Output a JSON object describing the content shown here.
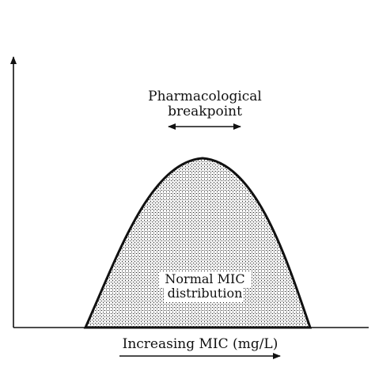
{
  "diagram": {
    "top_label_line1": "Pharmacological",
    "top_label_line2": "breakpoint",
    "curve_label_line1": "Normal MIC",
    "curve_label_line2": "distribution",
    "x_label": "Increasing MIC (mg/L)"
  },
  "colors": {
    "ink": "#111111",
    "background": "#ffffff"
  }
}
